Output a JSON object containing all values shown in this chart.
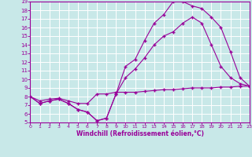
{
  "bg_color": "#c8e8e8",
  "grid_color": "#ffffff",
  "line_color": "#990099",
  "xlabel": "Windchill (Refroidissement éolien,°C)",
  "ylim": [
    5,
    19
  ],
  "xlim": [
    0,
    23
  ],
  "yticks": [
    5,
    6,
    7,
    8,
    9,
    10,
    11,
    12,
    13,
    14,
    15,
    16,
    17,
    18,
    19
  ],
  "xticks": [
    0,
    1,
    2,
    3,
    4,
    5,
    6,
    7,
    8,
    9,
    10,
    11,
    12,
    13,
    14,
    15,
    16,
    17,
    18,
    19,
    20,
    21,
    22,
    23
  ],
  "line1_x": [
    0,
    1,
    2,
    3,
    4,
    5,
    6,
    7,
    8,
    9,
    10,
    11,
    12,
    13,
    14,
    15,
    16,
    17,
    18,
    19,
    20,
    21,
    22,
    23
  ],
  "line1_y": [
    8.0,
    7.2,
    7.5,
    7.7,
    7.2,
    6.5,
    6.2,
    5.2,
    5.5,
    8.3,
    11.5,
    12.3,
    14.5,
    16.5,
    17.5,
    19.0,
    19.0,
    18.5,
    18.2,
    17.2,
    16.0,
    13.2,
    10.2,
    9.2
  ],
  "line2_x": [
    0,
    1,
    2,
    3,
    4,
    5,
    6,
    7,
    8,
    9,
    10,
    11,
    12,
    13,
    14,
    15,
    16,
    17,
    18,
    19,
    20,
    21,
    22,
    23
  ],
  "line2_y": [
    8.0,
    7.2,
    7.5,
    7.7,
    7.2,
    6.5,
    6.2,
    5.2,
    5.5,
    8.3,
    10.2,
    11.2,
    12.5,
    14.0,
    15.0,
    15.5,
    16.5,
    17.2,
    16.5,
    14.0,
    11.5,
    10.2,
    9.5,
    9.2
  ],
  "line3_x": [
    0,
    1,
    2,
    3,
    4,
    5,
    6,
    7,
    8,
    9,
    10,
    11,
    12,
    13,
    14,
    15,
    16,
    17,
    18,
    19,
    20,
    21,
    22,
    23
  ],
  "line3_y": [
    8.0,
    7.5,
    7.7,
    7.8,
    7.5,
    7.2,
    7.2,
    8.3,
    8.3,
    8.5,
    8.5,
    8.5,
    8.6,
    8.7,
    8.8,
    8.8,
    8.9,
    9.0,
    9.0,
    9.0,
    9.1,
    9.1,
    9.2,
    9.2
  ]
}
